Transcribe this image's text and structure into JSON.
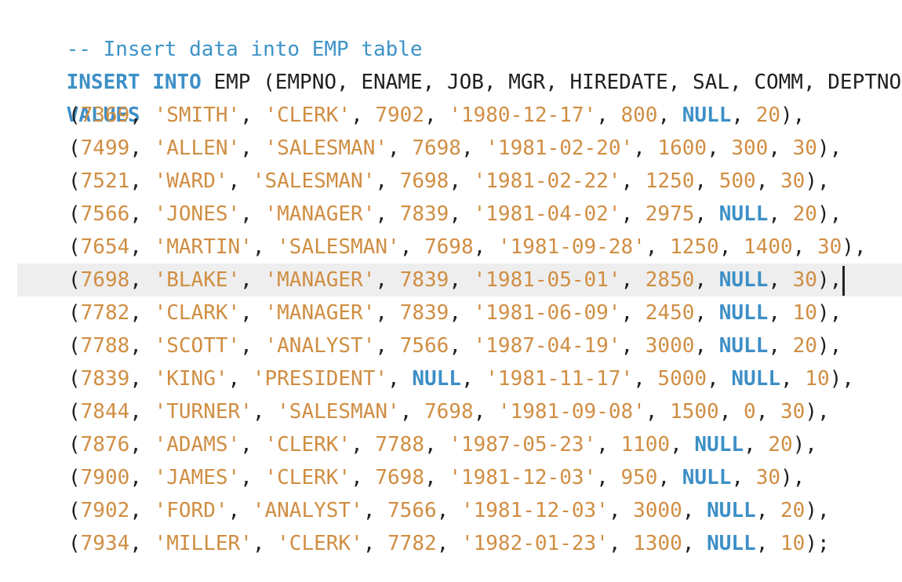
{
  "editor": {
    "comment": "-- Insert data into EMP table",
    "insert_kw": "INSERT INTO",
    "table": "EMP",
    "columns": [
      "EMPNO",
      "ENAME",
      "JOB",
      "MGR",
      "HIREDATE",
      "SAL",
      "COMM",
      "DEPTNO"
    ],
    "values_kw": "VALUES",
    "current_line_index": 5,
    "rows": [
      {
        "empno": "7369",
        "ename": "'SMITH'",
        "job": "'CLERK'",
        "mgr": "7902",
        "hiredate": "'1980-12-17'",
        "sal": "800",
        "comm": "NULL",
        "deptno": "20",
        "end": "),"
      },
      {
        "empno": "7499",
        "ename": "'ALLEN'",
        "job": "'SALESMAN'",
        "mgr": "7698",
        "hiredate": "'1981-02-20'",
        "sal": "1600",
        "comm": "300",
        "deptno": "30",
        "end": "),"
      },
      {
        "empno": "7521",
        "ename": "'WARD'",
        "job": "'SALESMAN'",
        "mgr": "7698",
        "hiredate": "'1981-02-22'",
        "sal": "1250",
        "comm": "500",
        "deptno": "30",
        "end": "),"
      },
      {
        "empno": "7566",
        "ename": "'JONES'",
        "job": "'MANAGER'",
        "mgr": "7839",
        "hiredate": "'1981-04-02'",
        "sal": "2975",
        "comm": "NULL",
        "deptno": "20",
        "end": "),"
      },
      {
        "empno": "7654",
        "ename": "'MARTIN'",
        "job": "'SALESMAN'",
        "mgr": "7698",
        "hiredate": "'1981-09-28'",
        "sal": "1250",
        "comm": "1400",
        "deptno": "30",
        "end": "),"
      },
      {
        "empno": "7698",
        "ename": "'BLAKE'",
        "job": "'MANAGER'",
        "mgr": "7839",
        "hiredate": "'1981-05-01'",
        "sal": "2850",
        "comm": "NULL",
        "deptno": "30",
        "end": "),"
      },
      {
        "empno": "7782",
        "ename": "'CLARK'",
        "job": "'MANAGER'",
        "mgr": "7839",
        "hiredate": "'1981-06-09'",
        "sal": "2450",
        "comm": "NULL",
        "deptno": "10",
        "end": "),"
      },
      {
        "empno": "7788",
        "ename": "'SCOTT'",
        "job": "'ANALYST'",
        "mgr": "7566",
        "hiredate": "'1987-04-19'",
        "sal": "3000",
        "comm": "NULL",
        "deptno": "20",
        "end": "),"
      },
      {
        "empno": "7839",
        "ename": "'KING'",
        "job": "'PRESIDENT'",
        "mgr": "NULL",
        "hiredate": "'1981-11-17'",
        "sal": "5000",
        "comm": "NULL",
        "deptno": "10",
        "end": "),"
      },
      {
        "empno": "7844",
        "ename": "'TURNER'",
        "job": "'SALESMAN'",
        "mgr": "7698",
        "hiredate": "'1981-09-08'",
        "sal": "1500",
        "comm": "0",
        "deptno": "30",
        "end": "),"
      },
      {
        "empno": "7876",
        "ename": "'ADAMS'",
        "job": "'CLERK'",
        "mgr": "7788",
        "hiredate": "'1987-05-23'",
        "sal": "1100",
        "comm": "NULL",
        "deptno": "20",
        "end": "),"
      },
      {
        "empno": "7900",
        "ename": "'JAMES'",
        "job": "'CLERK'",
        "mgr": "7698",
        "hiredate": "'1981-12-03'",
        "sal": "950",
        "comm": "NULL",
        "deptno": "30",
        "end": "),"
      },
      {
        "empno": "7902",
        "ename": "'FORD'",
        "job": "'ANALYST'",
        "mgr": "7566",
        "hiredate": "'1981-12-03'",
        "sal": "3000",
        "comm": "NULL",
        "deptno": "20",
        "end": "),"
      },
      {
        "empno": "7934",
        "ename": "'MILLER'",
        "job": "'CLERK'",
        "mgr": "7782",
        "hiredate": "'1982-01-23'",
        "sal": "1300",
        "comm": "NULL",
        "deptno": "10",
        "end": ");"
      }
    ],
    "colors": {
      "keyword": "#3d8fc6",
      "comment": "#3d93c7",
      "literal": "#d08e43",
      "text": "#1f1f1f",
      "current_line_bg": "#eeeeee"
    }
  }
}
